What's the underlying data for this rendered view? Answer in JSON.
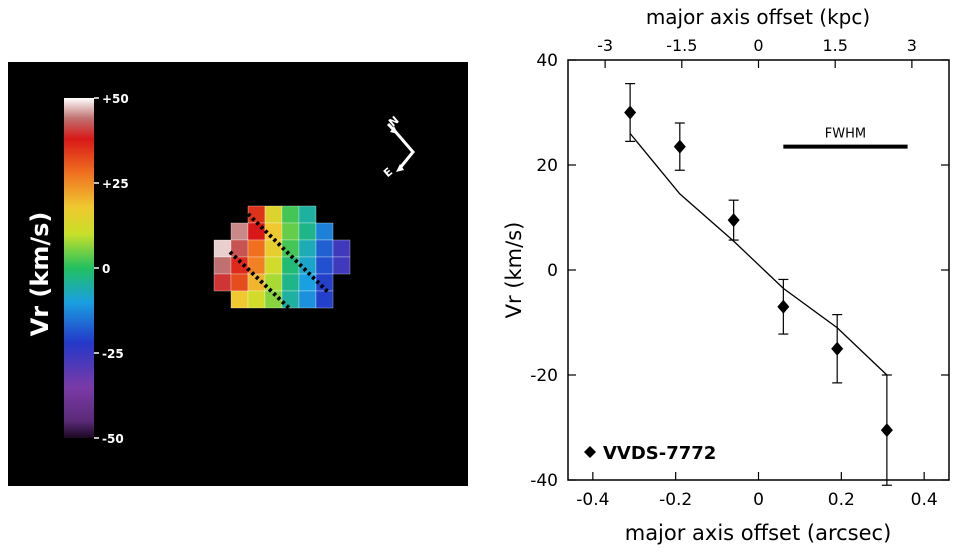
{
  "map_panel": {
    "colorbar_label": "Vr (km/s)",
    "colorbar_ticks": [
      "+50",
      "+25",
      "0",
      "-25",
      "-50"
    ],
    "colorbar_values": [
      50,
      25,
      0,
      -25,
      -50
    ],
    "compass_north": "N",
    "compass_east": "E",
    "grid": [
      [
        null,
        null,
        35,
        14,
        2,
        -6,
        null,
        null
      ],
      [
        null,
        45,
        38,
        18,
        4,
        -4,
        -16,
        null
      ],
      [
        48,
        42,
        28,
        16,
        2,
        -8,
        -20,
        -30
      ],
      [
        44,
        36,
        26,
        12,
        -2,
        -10,
        -22,
        -30
      ],
      [
        40,
        32,
        20,
        8,
        -4,
        -12,
        -24,
        null
      ],
      [
        null,
        18,
        12,
        6,
        -6,
        -14,
        -24,
        null
      ]
    ],
    "colors": {
      "background": "#000000",
      "scale": [
        "#2a0a3a",
        "#6a2e9a",
        "#2540c8",
        "#1aa0e0",
        "#20c060",
        "#c8e030",
        "#f0c020",
        "#f07020",
        "#d01818",
        "#ffffff"
      ]
    }
  },
  "chart_data": {
    "type": "scatter",
    "title": "",
    "xlabel": "major axis offset (arcsec)",
    "x2label": "major axis offset (kpc)",
    "ylabel": "Vr (km/s)",
    "xlim": [
      -0.46,
      0.46
    ],
    "ylim": [
      -40,
      40
    ],
    "xticks": [
      -0.4,
      -0.2,
      0,
      0.2,
      0.4
    ],
    "xtick_labels": [
      "-0.4",
      "-0.2",
      "0",
      "0.2",
      "0.4"
    ],
    "yticks": [
      -40,
      -20,
      0,
      20,
      40
    ],
    "ytick_labels": [
      "-40",
      "-20",
      "0",
      "20",
      "40"
    ],
    "x2ticks": [
      -3,
      -1.5,
      0,
      1.5,
      3
    ],
    "x2tick_labels": [
      "-3",
      "-1.5",
      "0",
      "1.5",
      "3"
    ],
    "x2_per_x": 8.1,
    "series": [
      {
        "name": "VVDS-7772",
        "marker": "diamond",
        "x": [
          -0.31,
          -0.19,
          -0.06,
          0.06,
          0.19,
          0.31
        ],
        "y": [
          30,
          23.5,
          9.5,
          -7,
          -15,
          -30.5
        ],
        "yerr": [
          5.5,
          4.5,
          3.8,
          5.2,
          6.5,
          10.5
        ]
      }
    ],
    "model_line": {
      "x": [
        -0.31,
        -0.19,
        -0.06,
        0.06,
        0.19,
        0.31
      ],
      "y": [
        26,
        14.5,
        5.5,
        -3.5,
        -11,
        -20
      ]
    },
    "fwhm": {
      "label": "FWHM",
      "x_range": [
        0.06,
        0.36
      ],
      "y": 23.5
    },
    "legend": {
      "label": "VVDS-7772",
      "position": "bottom-left"
    },
    "grid": false
  }
}
